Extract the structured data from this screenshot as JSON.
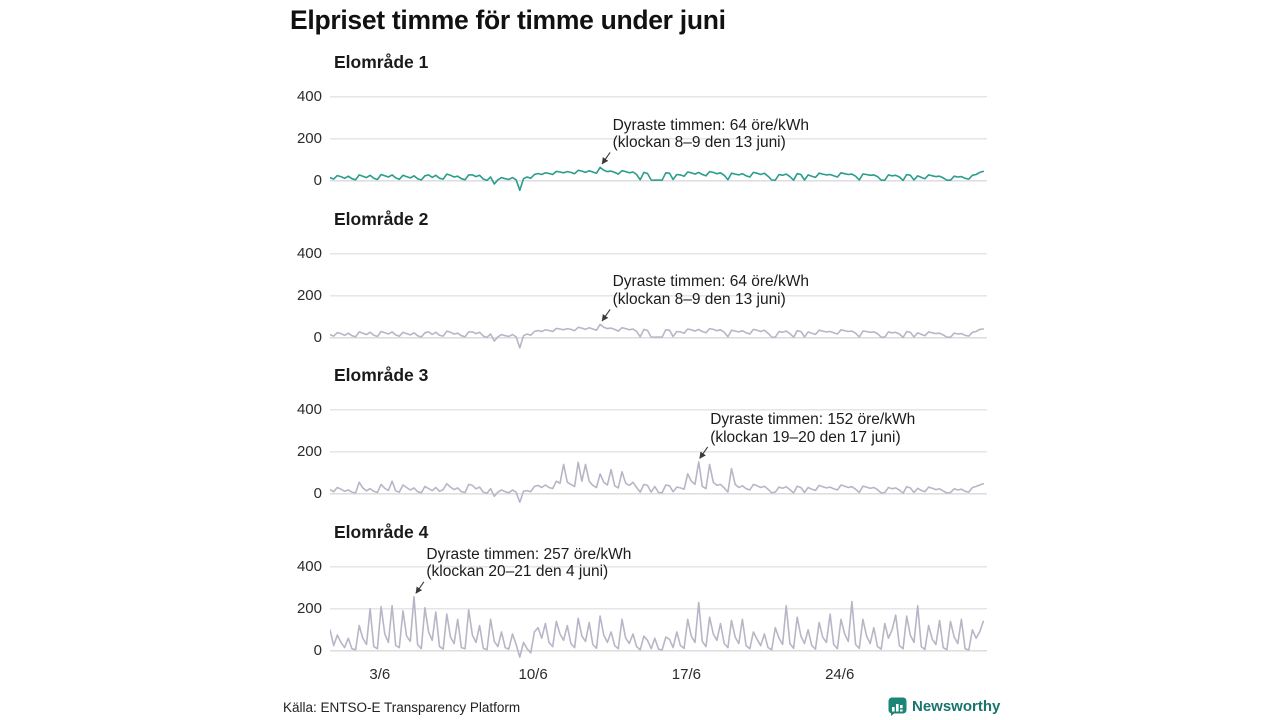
{
  "title": "Elpriset timme för timme under juni",
  "source": "Källa: ENTSO-E Transparency Platform",
  "logo": {
    "text": "Newsworthy",
    "icon": "newsworthy-bars-icon",
    "color": "#1b8577",
    "text_color": "#17756c"
  },
  "chart_data": {
    "type": "line",
    "title": "Elpriset timme för timme under juni",
    "unit": "öre/kWh",
    "x_unit": "day of June, hourly prices sampled every 4 hours (hours 0,4,8,12,16,20)",
    "start_day": 1,
    "samples_per_day": 6,
    "xlim_days": [
      1,
      31
    ],
    "ylim": [
      -120,
      480
    ],
    "yticks": [
      0,
      200,
      400
    ],
    "x_ticks": [
      {
        "label": "3/6",
        "day": 3
      },
      {
        "label": "10/6",
        "day": 10
      },
      {
        "label": "17/6",
        "day": 17
      },
      {
        "label": "24/6",
        "day": 24
      }
    ],
    "grid": "horizontal",
    "legend": "none",
    "colors": {
      "se1": "#2a9d8c",
      "other": "#b8b6c6",
      "gridline": "#e3e3e5",
      "zero_line": "#d9d9dc",
      "annotation_arrow": "#3a3a3a"
    },
    "panels": [
      {
        "name": "Elområde 1",
        "color_key": "se1",
        "annotation": {
          "line1": "Dyraste timmen: 64 öre/kWh",
          "line2": "(klockan 8–9 den 13 juni)",
          "value": 64,
          "day": 13,
          "hour": 8.5
        },
        "values": [
          15,
          8,
          25,
          20,
          12,
          22,
          10,
          5,
          28,
          22,
          15,
          26,
          12,
          6,
          30,
          24,
          18,
          28,
          14,
          7,
          26,
          20,
          14,
          24,
          10,
          4,
          24,
          28,
          16,
          26,
          12,
          8,
          32,
          26,
          18,
          22,
          10,
          5,
          28,
          28,
          20,
          26,
          8,
          2,
          18,
          -15,
          5,
          15,
          10,
          6,
          15,
          5,
          -45,
          10,
          18,
          12,
          30,
          35,
          30,
          38,
          35,
          30,
          45,
          42,
          38,
          44,
          40,
          34,
          50,
          46,
          40,
          48,
          42,
          36,
          64,
          50,
          44,
          46,
          40,
          32,
          48,
          44,
          38,
          42,
          30,
          5,
          40,
          35,
          4,
          3,
          4,
          3,
          38,
          36,
          6,
          30,
          28,
          22,
          42,
          38,
          32,
          40,
          30,
          24,
          44,
          40,
          34,
          38,
          26,
          5,
          36,
          32,
          28,
          34,
          24,
          18,
          40,
          36,
          30,
          36,
          22,
          4,
          3,
          30,
          26,
          32,
          20,
          3,
          34,
          30,
          4,
          28,
          22,
          16,
          36,
          32,
          28,
          30,
          24,
          18,
          38,
          34,
          30,
          32,
          22,
          4,
          32,
          30,
          26,
          28,
          20,
          3,
          3,
          28,
          24,
          26,
          18,
          2,
          30,
          26,
          4,
          24,
          16,
          10,
          28,
          24,
          20,
          22,
          14,
          3,
          3,
          22,
          18,
          20,
          12,
          8,
          26,
          30,
          40,
          45
        ]
      },
      {
        "name": "Elområde 2",
        "color_key": "other",
        "annotation": {
          "line1": "Dyraste timmen: 64 öre/kWh",
          "line2": "(klockan 8–9 den 13 juni)",
          "value": 64,
          "day": 13,
          "hour": 8.5
        },
        "values": [
          15,
          8,
          25,
          20,
          12,
          22,
          10,
          5,
          28,
          22,
          15,
          26,
          12,
          6,
          30,
          24,
          18,
          28,
          14,
          7,
          26,
          20,
          14,
          24,
          10,
          4,
          24,
          28,
          16,
          26,
          12,
          8,
          32,
          26,
          18,
          22,
          10,
          5,
          28,
          28,
          20,
          26,
          8,
          2,
          18,
          -15,
          5,
          15,
          10,
          6,
          15,
          5,
          -48,
          10,
          18,
          12,
          30,
          35,
          30,
          38,
          35,
          30,
          45,
          42,
          38,
          44,
          40,
          34,
          50,
          46,
          40,
          48,
          42,
          36,
          64,
          50,
          44,
          46,
          40,
          32,
          48,
          44,
          38,
          42,
          30,
          5,
          40,
          35,
          4,
          3,
          4,
          3,
          38,
          36,
          6,
          30,
          28,
          22,
          42,
          38,
          32,
          40,
          30,
          24,
          44,
          40,
          34,
          38,
          26,
          5,
          36,
          32,
          28,
          34,
          24,
          18,
          40,
          36,
          30,
          36,
          22,
          4,
          3,
          30,
          26,
          32,
          20,
          3,
          34,
          30,
          4,
          28,
          22,
          16,
          36,
          32,
          28,
          30,
          24,
          18,
          38,
          34,
          30,
          32,
          22,
          4,
          32,
          30,
          26,
          28,
          20,
          3,
          3,
          28,
          24,
          26,
          18,
          2,
          30,
          26,
          4,
          24,
          16,
          10,
          28,
          24,
          20,
          22,
          14,
          3,
          3,
          22,
          18,
          20,
          12,
          8,
          26,
          30,
          40,
          42
        ]
      },
      {
        "name": "Elområde 3",
        "color_key": "other",
        "annotation": {
          "line1": "Dyraste timmen: 152 öre/kWh",
          "line2": "(klockan 19–20 den 17 juni)",
          "value": 152,
          "day": 17,
          "hour": 19.5
        },
        "values": [
          20,
          10,
          30,
          22,
          12,
          18,
          8,
          4,
          55,
          28,
          14,
          25,
          12,
          6,
          45,
          26,
          16,
          60,
          14,
          8,
          42,
          30,
          18,
          28,
          10,
          5,
          35,
          25,
          15,
          30,
          12,
          20,
          48,
          32,
          20,
          28,
          10,
          6,
          45,
          40,
          24,
          32,
          8,
          3,
          25,
          -12,
          8,
          18,
          10,
          5,
          18,
          8,
          -40,
          12,
          15,
          10,
          35,
          40,
          30,
          42,
          30,
          25,
          60,
          50,
          140,
          55,
          45,
          35,
          150,
          60,
          140,
          60,
          40,
          30,
          95,
          55,
          42,
          115,
          38,
          28,
          105,
          50,
          40,
          55,
          30,
          8,
          45,
          40,
          8,
          35,
          6,
          5,
          42,
          38,
          10,
          32,
          28,
          22,
          95,
          60,
          45,
          152,
          35,
          25,
          140,
          55,
          40,
          45,
          28,
          8,
          120,
          45,
          30,
          38,
          25,
          18,
          45,
          38,
          30,
          36,
          22,
          5,
          8,
          32,
          26,
          34,
          20,
          4,
          36,
          30,
          6,
          30,
          22,
          16,
          40,
          34,
          28,
          32,
          24,
          18,
          42,
          36,
          30,
          34,
          22,
          6,
          36,
          32,
          26,
          30,
          20,
          4,
          6,
          30,
          24,
          28,
          18,
          3,
          34,
          28,
          6,
          26,
          16,
          10,
          32,
          26,
          20,
          24,
          14,
          4,
          6,
          24,
          18,
          22,
          12,
          8,
          30,
          35,
          42,
          48
        ]
      },
      {
        "name": "Elområde 4",
        "color_key": "other",
        "annotation": {
          "line1": "Dyraste timmen: 257 öre/kWh",
          "line2": "(klockan 20–21 den 4 juni)",
          "value": 257,
          "day": 4,
          "hour": 20.5
        },
        "values": [
          100,
          25,
          75,
          40,
          15,
          60,
          10,
          5,
          120,
          60,
          30,
          200,
          20,
          10,
          210,
          80,
          40,
          215,
          25,
          15,
          190,
          70,
          45,
          257,
          30,
          10,
          205,
          90,
          50,
          185,
          20,
          8,
          175,
          65,
          35,
          150,
          15,
          10,
          195,
          75,
          40,
          120,
          12,
          5,
          150,
          45,
          20,
          90,
          15,
          8,
          80,
          30,
          -30,
          40,
          10,
          -10,
          90,
          110,
          60,
          130,
          40,
          20,
          140,
          80,
          50,
          120,
          35,
          15,
          155,
          70,
          45,
          135,
          30,
          12,
          165,
          75,
          40,
          90,
          25,
          10,
          150,
          60,
          35,
          80,
          20,
          5,
          70,
          50,
          10,
          60,
          8,
          4,
          65,
          55,
          15,
          90,
          25,
          12,
          150,
          70,
          40,
          230,
          45,
          20,
          160,
          80,
          50,
          130,
          35,
          15,
          145,
          65,
          35,
          150,
          25,
          10,
          90,
          55,
          25,
          80,
          15,
          5,
          110,
          60,
          30,
          215,
          35,
          12,
          160,
          70,
          35,
          100,
          25,
          8,
          135,
          65,
          40,
          175,
          30,
          10,
          150,
          80,
          45,
          235,
          30,
          12,
          150,
          70,
          35,
          110,
          20,
          8,
          130,
          60,
          100,
          170,
          25,
          10,
          165,
          75,
          40,
          215,
          20,
          6,
          120,
          55,
          30,
          145,
          15,
          5,
          140,
          65,
          35,
          150,
          10,
          4,
          100,
          60,
          90,
          140
        ]
      }
    ]
  }
}
